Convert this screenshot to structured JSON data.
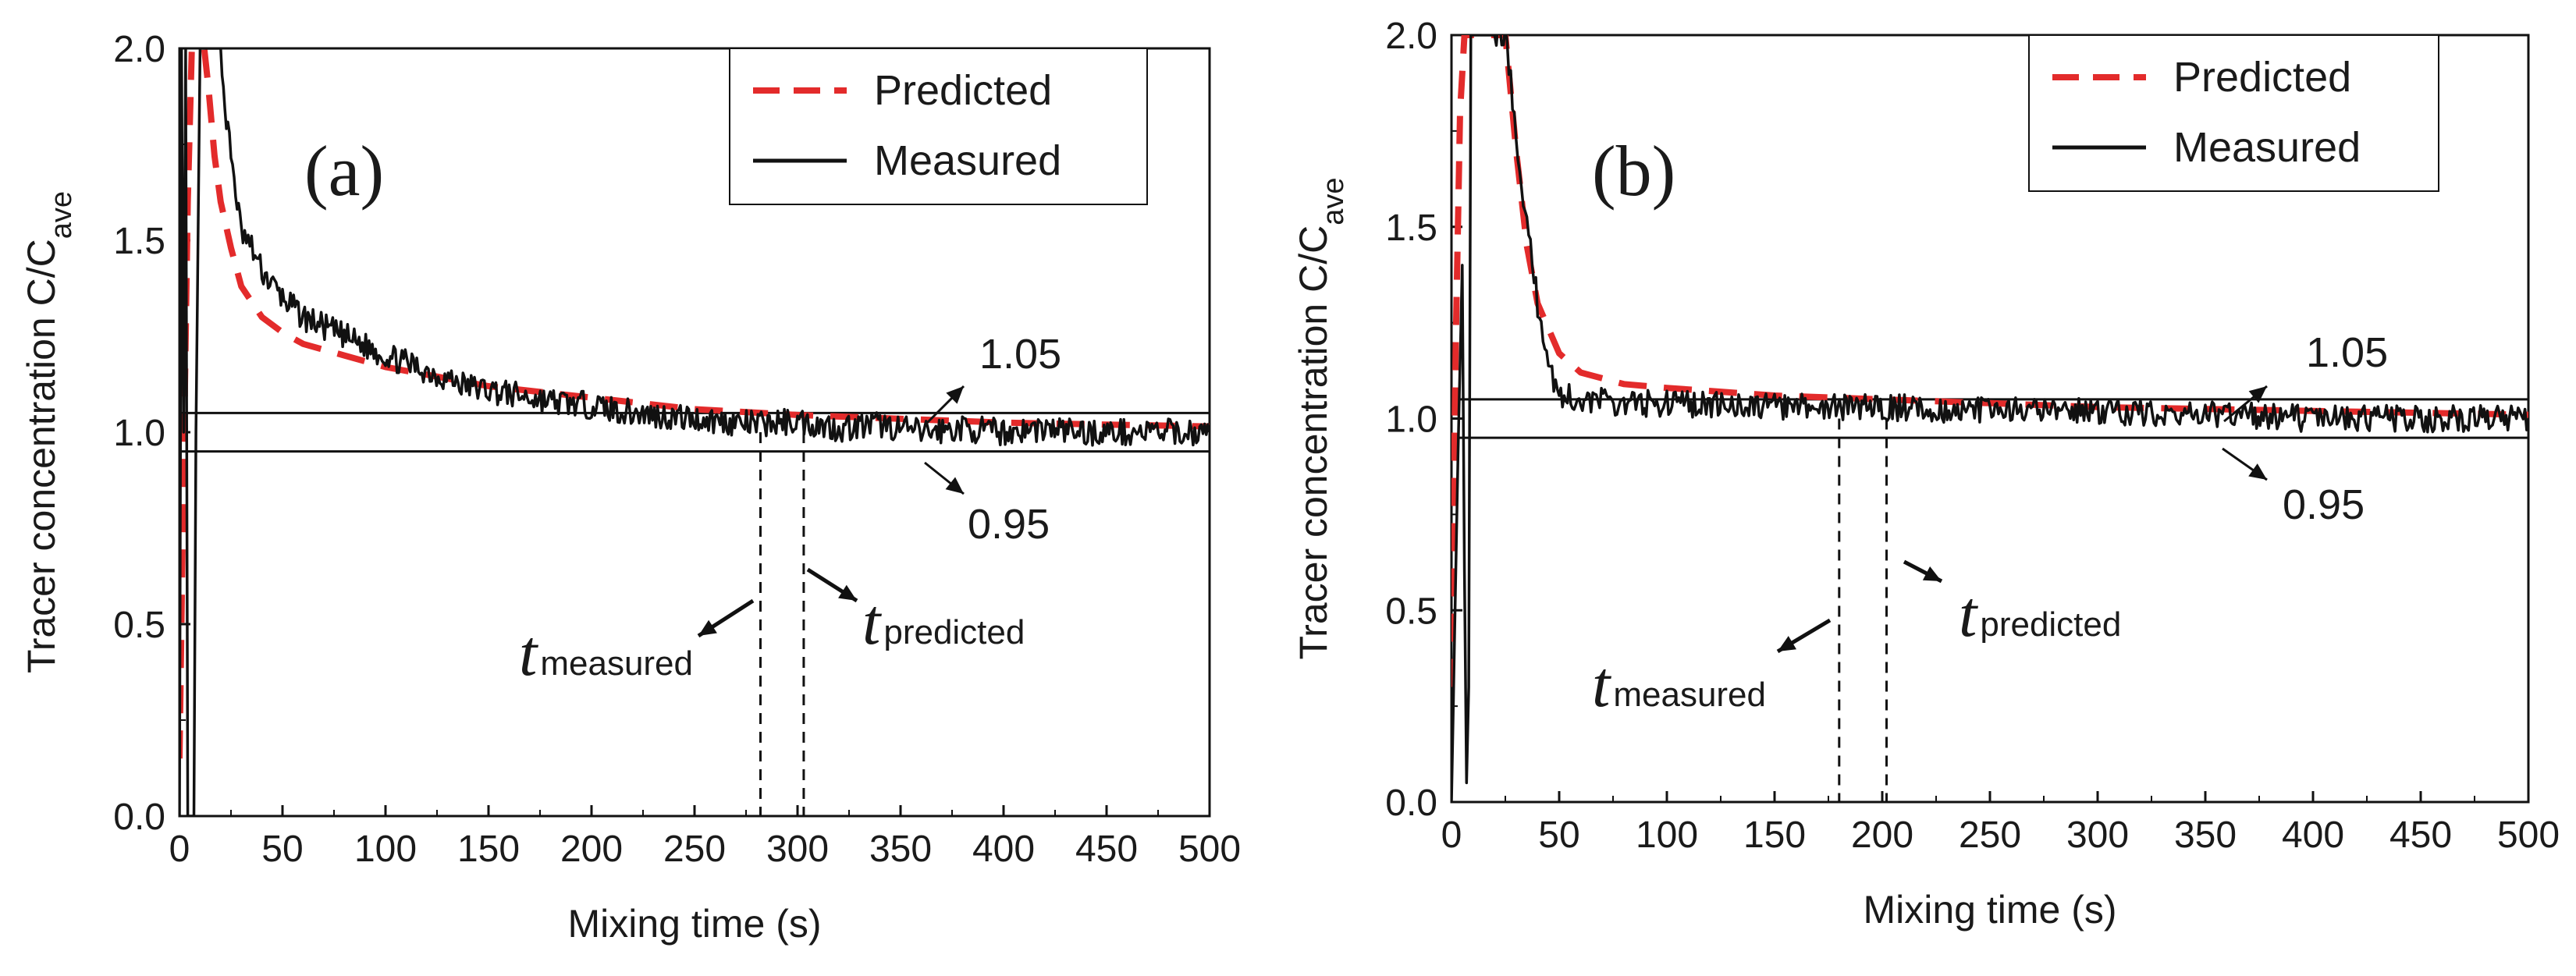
{
  "chart_data": [
    {
      "type": "line",
      "panel_label": "(a)",
      "xlabel": "Mixing time (s)",
      "ylabel": "Tracer concentration C/C",
      "ylabel_sub": "ave",
      "xlim": [
        0,
        500
      ],
      "ylim": [
        0,
        2.0
      ],
      "xticks": [
        "0",
        "50",
        "100",
        "150",
        "200",
        "250",
        "300",
        "350",
        "400",
        "450",
        "500"
      ],
      "yticks": [
        "0.0",
        "0.5",
        "1.0",
        "1.5",
        "2.0"
      ],
      "grid": false,
      "legend": {
        "position": "top-right",
        "entries": [
          "Predicted",
          "Measured"
        ]
      },
      "series": [
        {
          "name": "Predicted",
          "style": "dashed",
          "color": "#e32b2b",
          "x": [
            0,
            2,
            4,
            6,
            8,
            10,
            12,
            14,
            17,
            20,
            25,
            30,
            40,
            50,
            60,
            80,
            100,
            150,
            200,
            250,
            300,
            350,
            400,
            450,
            500
          ],
          "y": [
            0.15,
            0.9,
            1.6,
            2.0,
            2.0,
            2.0,
            2.0,
            1.9,
            1.72,
            1.6,
            1.48,
            1.38,
            1.3,
            1.26,
            1.23,
            1.2,
            1.17,
            1.12,
            1.09,
            1.06,
            1.045,
            1.035,
            1.025,
            1.02,
            1.015
          ]
        },
        {
          "name": "Measured",
          "style": "solid",
          "color": "#111111",
          "x": [
            0,
            1,
            2,
            3,
            4,
            5,
            6,
            7,
            8,
            10,
            12,
            15,
            18,
            20,
            22,
            25,
            28,
            30,
            35,
            40,
            50,
            60,
            80,
            100,
            120,
            140,
            160,
            180,
            200,
            220,
            240,
            260,
            280,
            300,
            320,
            340,
            360,
            380,
            400,
            420,
            440,
            460,
            480,
            500
          ],
          "y": [
            0.0,
            2.0,
            1.0,
            2.0,
            0.0,
            0.0,
            0.0,
            0.0,
            1.0,
            2.0,
            2.0,
            2.0,
            2.0,
            2.0,
            1.85,
            1.72,
            1.6,
            1.52,
            1.48,
            1.42,
            1.35,
            1.3,
            1.25,
            1.2,
            1.16,
            1.12,
            1.1,
            1.08,
            1.07,
            1.05,
            1.04,
            1.03,
            1.02,
            1.03,
            1.01,
            1.02,
            1.0,
            1.01,
            1.0,
            1.01,
            1.0,
            1.0,
            1.0,
            1.0
          ]
        }
      ],
      "hlines": [
        1.05,
        0.95
      ],
      "vlines": [
        {
          "x": 282,
          "name": "measured"
        },
        {
          "x": 303,
          "name": "predicted"
        }
      ],
      "annotations": {
        "upper": "1.05",
        "lower": "0.95",
        "t": "t",
        "measured": "measured",
        "predicted": "predicted"
      }
    },
    {
      "type": "line",
      "panel_label": "(b)",
      "xlabel": "Mixing time (s)",
      "ylabel": "Tracer concentration C/C",
      "ylabel_sub": "ave",
      "xlim": [
        0,
        500
      ],
      "ylim": [
        0,
        2.0
      ],
      "xticks": [
        "0",
        "50",
        "100",
        "150",
        "200",
        "250",
        "300",
        "350",
        "400",
        "450",
        "500"
      ],
      "yticks": [
        "0.0",
        "0.5",
        "1.0",
        "1.5",
        "2.0"
      ],
      "grid": false,
      "legend": {
        "position": "top-right",
        "entries": [
          "Predicted",
          "Measured"
        ]
      },
      "series": [
        {
          "name": "Predicted",
          "style": "dashed",
          "color": "#e32b2b",
          "x": [
            0,
            2,
            4,
            6,
            8,
            10,
            15,
            20,
            25,
            30,
            35,
            40,
            50,
            60,
            80,
            100,
            150,
            200,
            250,
            300,
            350,
            400,
            450,
            500
          ],
          "y": [
            0.3,
            1.2,
            1.8,
            2.0,
            2.0,
            2.0,
            2.0,
            2.0,
            2.0,
            1.7,
            1.45,
            1.3,
            1.17,
            1.12,
            1.09,
            1.08,
            1.06,
            1.05,
            1.04,
            1.03,
            1.025,
            1.02,
            1.015,
            1.01
          ]
        },
        {
          "name": "Measured",
          "style": "solid",
          "color": "#111111",
          "x": [
            0,
            3,
            5,
            6,
            7,
            8,
            9,
            10,
            12,
            15,
            20,
            25,
            30,
            35,
            40,
            45,
            50,
            60,
            80,
            100,
            150,
            200,
            250,
            300,
            350,
            400,
            450,
            500
          ],
          "y": [
            0.0,
            0.9,
            1.4,
            0.6,
            0.05,
            0.3,
            2.0,
            2.0,
            2.0,
            2.0,
            2.0,
            2.0,
            1.75,
            1.5,
            1.3,
            1.15,
            1.06,
            1.05,
            1.04,
            1.04,
            1.03,
            1.03,
            1.02,
            1.02,
            1.01,
            1.0,
            1.0,
            1.0
          ]
        }
      ],
      "hlines": [
        1.05,
        0.95
      ],
      "vlines": [
        {
          "x": 180,
          "name": "measured"
        },
        {
          "x": 202,
          "name": "predicted"
        }
      ],
      "annotations": {
        "upper": "1.05",
        "lower": "0.95",
        "t": "t",
        "measured": "measured",
        "predicted": "predicted"
      }
    }
  ]
}
